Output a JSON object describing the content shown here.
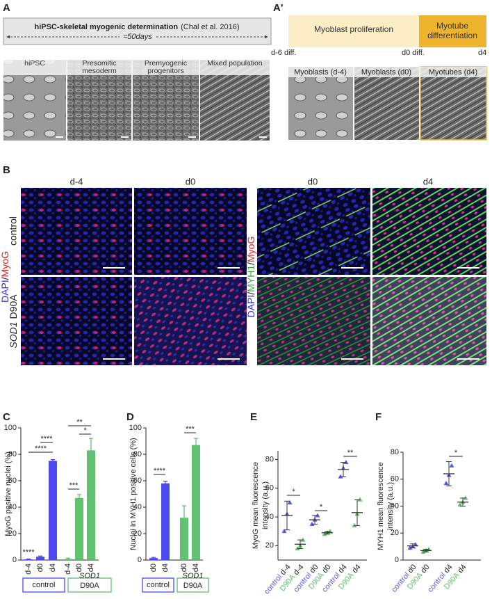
{
  "panel_a": {
    "label": "A",
    "title": "hiPSC-skeletal myogenic determination",
    "citation": "(Chal et al. 2016)",
    "duration": "≈50days",
    "images": [
      "hiPSC",
      "Presomitic mesoderm",
      "Premyogenic progenitors",
      "Mixed population"
    ]
  },
  "panel_a_prime": {
    "label": "A'",
    "phases": [
      "Myoblast proliferation",
      "Myotube differentiation"
    ],
    "timepoints": [
      "d-6 diff.",
      "d0 diff.",
      "d4"
    ],
    "images": [
      "Myoblasts (d-4)",
      "Myoblasts (d0)",
      "Myotubes (d4)"
    ]
  },
  "panel_b": {
    "label": "B",
    "columns": [
      "d-4",
      "d0",
      "d0",
      "d4"
    ],
    "row_control": "control",
    "row_mutant_gene": "SOD1",
    "row_mutant_allele": "D90A",
    "stain_left": [
      {
        "text": "DAPI",
        "color": "#2f2ff0"
      },
      {
        "text": "/",
        "color": "#222222"
      },
      {
        "text": "MyoG",
        "color": "#e02020"
      }
    ],
    "stain_right": [
      {
        "text": "DAPI",
        "color": "#2f2ff0"
      },
      {
        "text": "/",
        "color": "#222222"
      },
      {
        "text": "MYH1",
        "color": "#3aa83a"
      },
      {
        "text": "/",
        "color": "#222222"
      },
      {
        "text": "MyoG",
        "color": "#e02020"
      }
    ]
  },
  "chart_data": [
    {
      "panel_label": "C",
      "type": "bar",
      "ylabel": "MyoG positive nuclei (%)",
      "categories": [
        "d-4",
        "d0",
        "d4",
        "d-4",
        "d0",
        "d4"
      ],
      "values": [
        0.5,
        2.5,
        75,
        0.8,
        47,
        83
      ],
      "errors": [
        0.3,
        0.5,
        1,
        0.6,
        2.5,
        9
      ],
      "colors": [
        "#4a4af0",
        "#4a4af0",
        "#4a4af0",
        "#62c072",
        "#62c072",
        "#62c072"
      ],
      "ylim": [
        0,
        100
      ],
      "yticks": [
        0,
        20,
        40,
        60,
        80,
        100
      ],
      "groups": [
        {
          "label": "control",
          "color": "#4a4af0"
        },
        {
          "gene": "SOD1",
          "label": "D90A",
          "color": "#62c072"
        }
      ],
      "significance": [
        "****",
        "****",
        "****",
        "***",
        "**",
        "*"
      ]
    },
    {
      "panel_label": "D",
      "type": "bar",
      "ylabel": "Nuclei in MYH1 positive cells (%)",
      "categories": [
        "d0",
        "d4",
        "d0",
        "d4"
      ],
      "values": [
        1.5,
        58,
        32,
        87
      ],
      "errors": [
        0.5,
        1.5,
        9,
        5
      ],
      "colors": [
        "#4a4af0",
        "#4a4af0",
        "#62c072",
        "#62c072"
      ],
      "ylim": [
        0,
        100
      ],
      "yticks": [
        0,
        20,
        40,
        60,
        80,
        100
      ],
      "groups": [
        {
          "label": "control",
          "color": "#4a4af0"
        },
        {
          "gene": "SOD1",
          "label": "D90A",
          "color": "#62c072"
        }
      ],
      "significance": [
        "****",
        "***"
      ]
    },
    {
      "panel_label": "E",
      "type": "dot",
      "ylabel": [
        "MyoG mean fluorescence",
        "intensity (a.u.)"
      ],
      "x_groups": [
        "control",
        "D90A",
        "control",
        "D90A",
        "control",
        "D90A"
      ],
      "categories": [
        "d-4",
        "d-4",
        "d0",
        "d0",
        "d4",
        "d4"
      ],
      "values": [
        41,
        21,
        38,
        29,
        73,
        43
      ],
      "errors": [
        10,
        3,
        3,
        1,
        5,
        9
      ],
      "points": [
        [
          30,
          42,
          50
        ],
        [
          18,
          20,
          24
        ],
        [
          35,
          38,
          41
        ],
        [
          28,
          29,
          30
        ],
        [
          68,
          74,
          78
        ],
        [
          34,
          42,
          52
        ]
      ],
      "colors": [
        "#5555ee",
        "#5cbf6b",
        "#5555ee",
        "#5cbf6b",
        "#5555ee",
        "#5cbf6b"
      ],
      "ylim": [
        10,
        86
      ],
      "yticks": [
        20,
        40,
        60,
        80
      ],
      "significance": [
        "*",
        "*",
        "**"
      ]
    },
    {
      "panel_label": "F",
      "type": "dot",
      "ylabel": [
        "MYH1 mean fluorescence",
        "intensity (a.u.)"
      ],
      "x_groups": [
        "control",
        "D90A",
        "control",
        "D90A"
      ],
      "categories": [
        "d0",
        "d0",
        "d4",
        "d4"
      ],
      "values": [
        10.5,
        7,
        64,
        43
      ],
      "errors": [
        1.5,
        1,
        9,
        3
      ],
      "points": [
        [
          9,
          10,
          11.5
        ],
        [
          6,
          7,
          8
        ],
        [
          57,
          63,
          70
        ],
        [
          41,
          43,
          46
        ]
      ],
      "colors": [
        "#5555ee",
        "#5cbf6b",
        "#5555ee",
        "#5cbf6b"
      ],
      "ylim": [
        0,
        80
      ],
      "yticks": [
        0,
        20,
        40,
        60,
        80
      ],
      "significance": [
        "*"
      ]
    }
  ]
}
